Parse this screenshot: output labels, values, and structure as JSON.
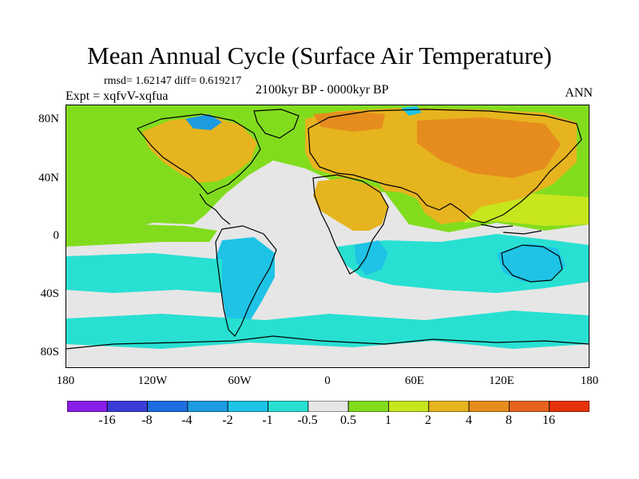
{
  "title": "Mean Annual Cycle (Surface Air Temperature)",
  "stats_text": "rmsd= 1.62147 diff= 0.619217",
  "period": "2100kyr BP - 0000kyr BP",
  "experiment": "Expt = xqfvV-xqfua",
  "season": "ANN",
  "y_ticks": [
    "80N",
    "40N",
    "0",
    "40S",
    "80S"
  ],
  "x_ticks": [
    "180",
    "120W",
    "60W",
    "0",
    "60E",
    "120E",
    "180"
  ],
  "colorbar": {
    "labels": [
      "-16",
      "-8",
      "-4",
      "-2",
      "-1",
      "-0.5",
      "0.5",
      "1",
      "2",
      "4",
      "8",
      "16"
    ],
    "colors": [
      "#8a1ee8",
      "#3c3cd8",
      "#1e6ee0",
      "#1e9be0",
      "#1ec3e6",
      "#28e0d2",
      "#e6e6e6",
      "#82dc1e",
      "#c8e61e",
      "#e6b41e",
      "#e68c1e",
      "#e6641e",
      "#e6320a"
    ]
  },
  "map_colors": {
    "neutral": "#e6e6e6",
    "light_green": "#82dc1e",
    "yellow_green": "#c8e61e",
    "amber": "#e6b41e",
    "orange": "#e68c1e",
    "cyan": "#28e0d2",
    "sky": "#1ec3e6",
    "blue": "#1e9be0",
    "coast": "#000000"
  }
}
